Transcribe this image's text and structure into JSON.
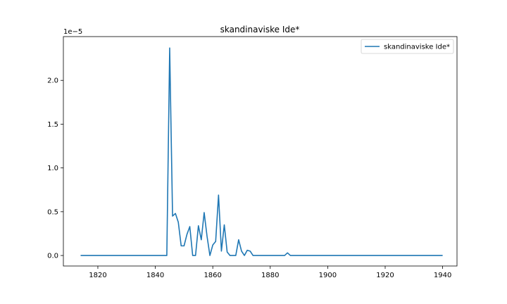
{
  "chart_data": {
    "type": "line",
    "title": "skandinaviske Ide*",
    "xlabel": "",
    "ylabel": "",
    "y_scale_label": "1e−5",
    "xlim": [
      1808,
      1945
    ],
    "ylim": [
      -0.12,
      2.5
    ],
    "xticks": [
      1820,
      1840,
      1860,
      1880,
      1900,
      1920,
      1940
    ],
    "yticks": [
      0.0,
      0.5,
      1.0,
      1.5,
      2.0
    ],
    "ytick_labels": [
      "0.0",
      "0.5",
      "1.0",
      "1.5",
      "2.0"
    ],
    "grid": false,
    "legend_position": "top-right",
    "colors": {
      "series": "#1f77b4"
    },
    "series": [
      {
        "name": "skandinaviske Ide*",
        "x": [
          1814,
          1815,
          1816,
          1817,
          1818,
          1819,
          1820,
          1821,
          1822,
          1823,
          1824,
          1825,
          1826,
          1827,
          1828,
          1829,
          1830,
          1831,
          1832,
          1833,
          1834,
          1835,
          1836,
          1837,
          1838,
          1839,
          1840,
          1841,
          1842,
          1843,
          1844,
          1845,
          1846,
          1847,
          1848,
          1849,
          1850,
          1851,
          1852,
          1853,
          1854,
          1855,
          1856,
          1857,
          1858,
          1859,
          1860,
          1861,
          1862,
          1863,
          1864,
          1865,
          1866,
          1867,
          1868,
          1869,
          1870,
          1871,
          1872,
          1873,
          1874,
          1875,
          1876,
          1877,
          1878,
          1879,
          1880,
          1881,
          1882,
          1883,
          1884,
          1885,
          1886,
          1887,
          1888,
          1889,
          1890,
          1900,
          1910,
          1920,
          1930,
          1940
        ],
        "values": [
          0,
          0,
          0,
          0,
          0,
          0,
          0,
          0,
          0,
          0,
          0,
          0,
          0,
          0,
          0,
          0,
          0,
          0,
          0,
          0,
          0,
          0,
          0,
          0,
          0,
          0,
          0,
          0,
          0,
          0,
          0,
          2.37,
          0.45,
          0.48,
          0.38,
          0.11,
          0.11,
          0.24,
          0.33,
          0.0,
          0.0,
          0.34,
          0.18,
          0.49,
          0.22,
          0.0,
          0.12,
          0.16,
          0.69,
          0.05,
          0.35,
          0.04,
          0.0,
          0.0,
          0.0,
          0.18,
          0.05,
          0.0,
          0.06,
          0.05,
          0.0,
          0,
          0,
          0,
          0,
          0,
          0,
          0,
          0,
          0,
          0,
          0,
          0.03,
          0,
          0,
          0,
          0,
          0,
          0,
          0,
          0,
          0
        ]
      }
    ]
  }
}
